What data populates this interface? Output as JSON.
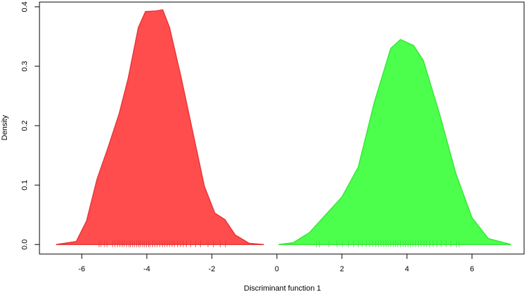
{
  "chart_data": {
    "type": "area",
    "xlabel": "Discriminant function 1",
    "ylabel": "Density",
    "xlim": [
      -7.3,
      7.6
    ],
    "ylim": [
      -0.016,
      0.408
    ],
    "xticks": [
      -6,
      -4,
      -2,
      0,
      2,
      4,
      6
    ],
    "yticks": [
      {
        "value": 0,
        "label": "0.0"
      },
      0.1,
      0.2,
      0.3,
      0.4
    ],
    "series": [
      {
        "color": "#ff4c4c",
        "stroke": "#e8383a",
        "x": [
          -6.79,
          -6.17,
          -5.85,
          -5.53,
          -5.21,
          -4.85,
          -4.57,
          -4.26,
          -4.04,
          -3.72,
          -3.51,
          -3.3,
          -2.94,
          -2.55,
          -2.23,
          -1.91,
          -1.6,
          -1.28,
          -0.85,
          -0.4
        ],
        "values": [
          0,
          0.005,
          0.04,
          0.11,
          0.16,
          0.22,
          0.28,
          0.365,
          0.392,
          0.393,
          0.395,
          0.365,
          0.28,
          0.18,
          0.098,
          0.053,
          0.042,
          0.016,
          0.002,
          0
        ],
        "rug": [
          -5.47,
          -5.41,
          -5.3,
          -5.22,
          -5.05,
          -4.98,
          -4.9,
          -4.83,
          -4.76,
          -4.7,
          -4.62,
          -4.55,
          -4.5,
          -4.44,
          -4.38,
          -4.31,
          -4.25,
          -4.2,
          -4.13,
          -4.07,
          -4.01,
          -3.95,
          -3.9,
          -3.82,
          -3.75,
          -3.68,
          -3.6,
          -3.52,
          -3.45,
          -3.38,
          -3.3,
          -3.22,
          -3.15,
          -3.05,
          -2.96,
          -2.88,
          -2.78,
          -2.65,
          -2.5,
          -2.35,
          -2.12,
          -1.95,
          -1.74,
          -1.58
        ]
      },
      {
        "color": "#4cff4c",
        "stroke": "#38e838",
        "x": [
          0.05,
          0.5,
          1.0,
          1.5,
          2.0,
          2.5,
          3.0,
          3.5,
          3.8,
          4.2,
          4.5,
          5.0,
          5.5,
          6.0,
          6.5,
          7.2
        ],
        "values": [
          0,
          0.003,
          0.02,
          0.05,
          0.08,
          0.13,
          0.24,
          0.33,
          0.345,
          0.335,
          0.31,
          0.22,
          0.12,
          0.045,
          0.01,
          0
        ],
        "rug": [
          1.22,
          1.31,
          1.6,
          1.85,
          2.02,
          2.2,
          2.36,
          2.5,
          2.62,
          2.75,
          2.85,
          2.95,
          3.04,
          3.12,
          3.2,
          3.28,
          3.36,
          3.43,
          3.5,
          3.58,
          3.65,
          3.72,
          3.8,
          3.88,
          3.95,
          4.03,
          4.1,
          4.18,
          4.26,
          4.35,
          4.43,
          4.52,
          4.6,
          4.7,
          4.8,
          4.92,
          5.05,
          5.2,
          5.35,
          5.52,
          5.6
        ]
      }
    ]
  }
}
